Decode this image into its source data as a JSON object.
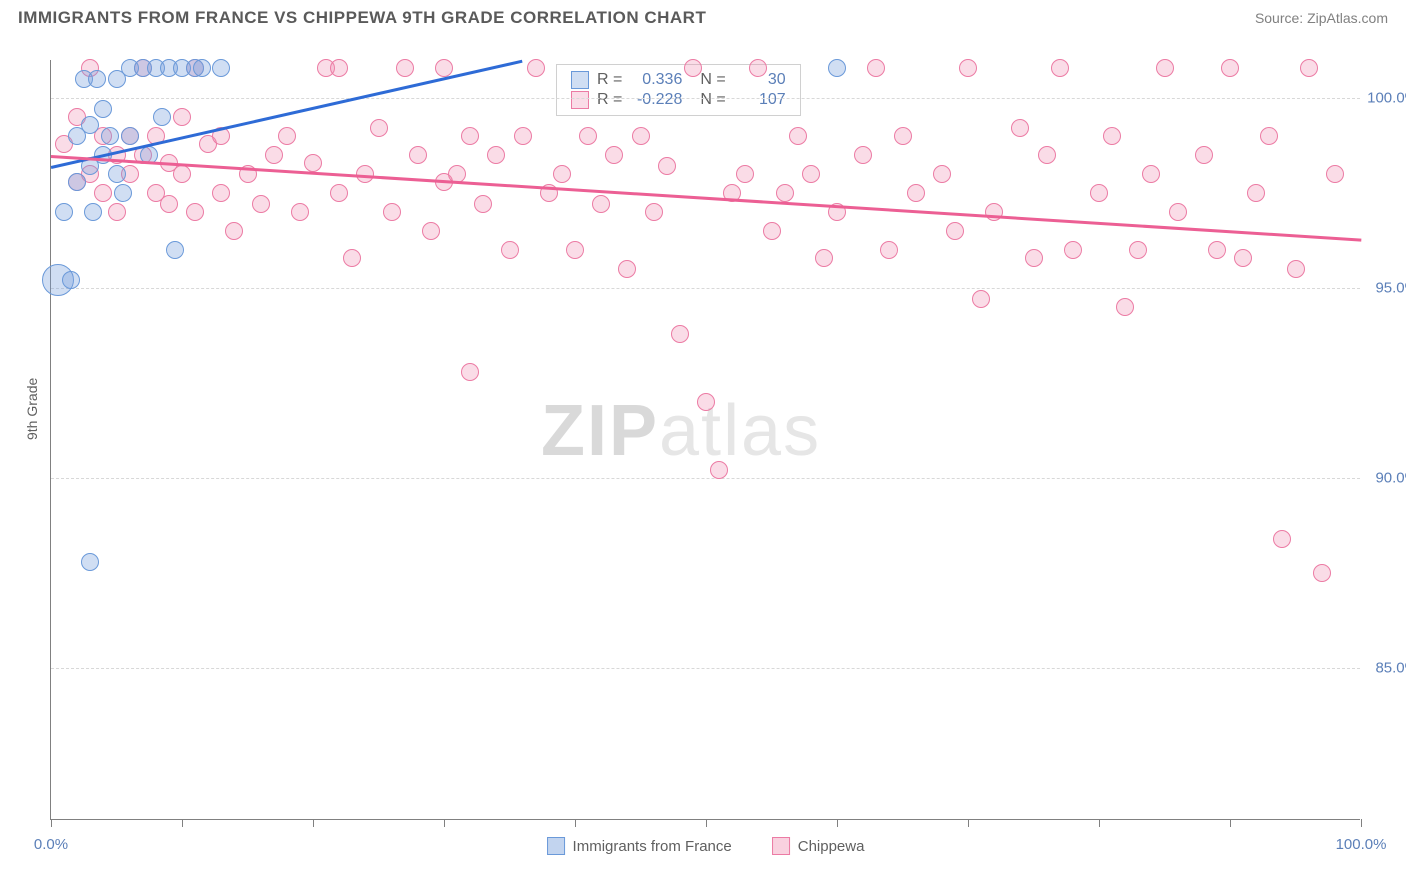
{
  "header": {
    "title": "IMMIGRANTS FROM FRANCE VS CHIPPEWA 9TH GRADE CORRELATION CHART",
    "source": "Source: ZipAtlas.com"
  },
  "chart": {
    "type": "scatter",
    "y_axis_title": "9th Grade",
    "xlim": [
      0,
      100
    ],
    "ylim": [
      81,
      101
    ],
    "y_ticks": [
      85.0,
      90.0,
      95.0,
      100.0
    ],
    "y_tick_labels": [
      "85.0%",
      "90.0%",
      "95.0%",
      "100.0%"
    ],
    "x_ticks": [
      0,
      10,
      20,
      30,
      40,
      50,
      60,
      70,
      80,
      90,
      100
    ],
    "x_end_labels": [
      "0.0%",
      "100.0%"
    ],
    "grid_color": "#d8d8d8",
    "axis_color": "#808080",
    "label_color": "#5b7fb8",
    "background_color": "#ffffff",
    "watermark": "ZIPatlas",
    "series": [
      {
        "name": "Immigrants from France",
        "short": "france",
        "color_fill": "rgba(120,160,220,0.35)",
        "color_stroke": "#6a99d9",
        "marker_radius": 9,
        "r_value": "0.336",
        "n_value": "30",
        "trend": {
          "x1": 0,
          "y1": 98.2,
          "x2": 36,
          "y2": 101.0,
          "color": "#2e6bd6"
        },
        "data": [
          {
            "x": 0.5,
            "y": 95.2,
            "r": 16
          },
          {
            "x": 1,
            "y": 97.0
          },
          {
            "x": 1.5,
            "y": 95.2
          },
          {
            "x": 2,
            "y": 99.0
          },
          {
            "x": 2,
            "y": 97.8
          },
          {
            "x": 2.5,
            "y": 100.5
          },
          {
            "x": 3,
            "y": 98.2
          },
          {
            "x": 3,
            "y": 99.3
          },
          {
            "x": 3.2,
            "y": 97.0
          },
          {
            "x": 3.5,
            "y": 100.5
          },
          {
            "x": 4,
            "y": 99.7
          },
          {
            "x": 4,
            "y": 98.5
          },
          {
            "x": 4.5,
            "y": 99.0
          },
          {
            "x": 5,
            "y": 100.5
          },
          {
            "x": 5,
            "y": 98.0
          },
          {
            "x": 5.5,
            "y": 97.5
          },
          {
            "x": 6,
            "y": 100.8
          },
          {
            "x": 6,
            "y": 99.0
          },
          {
            "x": 7,
            "y": 100.8
          },
          {
            "x": 7.5,
            "y": 98.5
          },
          {
            "x": 8,
            "y": 100.8
          },
          {
            "x": 8.5,
            "y": 99.5
          },
          {
            "x": 9,
            "y": 100.8
          },
          {
            "x": 9.5,
            "y": 96.0
          },
          {
            "x": 10,
            "y": 100.8
          },
          {
            "x": 11,
            "y": 100.8
          },
          {
            "x": 11.5,
            "y": 100.8
          },
          {
            "x": 13,
            "y": 100.8
          },
          {
            "x": 60,
            "y": 100.8
          },
          {
            "x": 3,
            "y": 87.8
          }
        ]
      },
      {
        "name": "Chippewa",
        "short": "chippewa",
        "color_fill": "rgba(240,140,175,0.30)",
        "color_stroke": "#ec7ba4",
        "marker_radius": 9,
        "r_value": "-0.228",
        "n_value": "107",
        "trend": {
          "x1": 0,
          "y1": 98.5,
          "x2": 100,
          "y2": 96.3,
          "color": "#ec5f94"
        },
        "data": [
          {
            "x": 1,
            "y": 98.8
          },
          {
            "x": 2,
            "y": 97.8
          },
          {
            "x": 2,
            "y": 99.5
          },
          {
            "x": 3,
            "y": 98.0
          },
          {
            "x": 3,
            "y": 100.8
          },
          {
            "x": 4,
            "y": 97.5
          },
          {
            "x": 4,
            "y": 99.0
          },
          {
            "x": 5,
            "y": 98.5
          },
          {
            "x": 5,
            "y": 97.0
          },
          {
            "x": 6,
            "y": 99.0
          },
          {
            "x": 6,
            "y": 98.0
          },
          {
            "x": 7,
            "y": 100.8
          },
          {
            "x": 7,
            "y": 98.5
          },
          {
            "x": 8,
            "y": 97.5
          },
          {
            "x": 8,
            "y": 99.0
          },
          {
            "x": 9,
            "y": 98.3
          },
          {
            "x": 9,
            "y": 97.2
          },
          {
            "x": 10,
            "y": 99.5
          },
          {
            "x": 10,
            "y": 98.0
          },
          {
            "x": 11,
            "y": 100.8
          },
          {
            "x": 11,
            "y": 97.0
          },
          {
            "x": 12,
            "y": 98.8
          },
          {
            "x": 13,
            "y": 97.5
          },
          {
            "x": 13,
            "y": 99.0
          },
          {
            "x": 14,
            "y": 96.5
          },
          {
            "x": 15,
            "y": 98.0
          },
          {
            "x": 16,
            "y": 97.2
          },
          {
            "x": 17,
            "y": 98.5
          },
          {
            "x": 18,
            "y": 99.0
          },
          {
            "x": 19,
            "y": 97.0
          },
          {
            "x": 20,
            "y": 98.3
          },
          {
            "x": 21,
            "y": 100.8
          },
          {
            "x": 22,
            "y": 97.5
          },
          {
            "x": 22,
            "y": 100.8
          },
          {
            "x": 23,
            "y": 95.8
          },
          {
            "x": 24,
            "y": 98.0
          },
          {
            "x": 25,
            "y": 99.2
          },
          {
            "x": 26,
            "y": 97.0
          },
          {
            "x": 27,
            "y": 100.8
          },
          {
            "x": 28,
            "y": 98.5
          },
          {
            "x": 29,
            "y": 96.5
          },
          {
            "x": 30,
            "y": 97.8
          },
          {
            "x": 30,
            "y": 100.8
          },
          {
            "x": 31,
            "y": 98.0
          },
          {
            "x": 32,
            "y": 99.0
          },
          {
            "x": 32,
            "y": 92.8
          },
          {
            "x": 33,
            "y": 97.2
          },
          {
            "x": 34,
            "y": 98.5
          },
          {
            "x": 35,
            "y": 96.0
          },
          {
            "x": 36,
            "y": 99.0
          },
          {
            "x": 37,
            "y": 100.8
          },
          {
            "x": 38,
            "y": 97.5
          },
          {
            "x": 39,
            "y": 98.0
          },
          {
            "x": 40,
            "y": 96.0
          },
          {
            "x": 41,
            "y": 99.0
          },
          {
            "x": 42,
            "y": 97.2
          },
          {
            "x": 43,
            "y": 98.5
          },
          {
            "x": 44,
            "y": 95.5
          },
          {
            "x": 45,
            "y": 99.0
          },
          {
            "x": 46,
            "y": 97.0
          },
          {
            "x": 47,
            "y": 98.2
          },
          {
            "x": 48,
            "y": 93.8
          },
          {
            "x": 49,
            "y": 100.8
          },
          {
            "x": 50,
            "y": 92.0
          },
          {
            "x": 51,
            "y": 90.2
          },
          {
            "x": 52,
            "y": 97.5
          },
          {
            "x": 53,
            "y": 98.0
          },
          {
            "x": 54,
            "y": 100.8
          },
          {
            "x": 55,
            "y": 96.5
          },
          {
            "x": 56,
            "y": 97.5
          },
          {
            "x": 57,
            "y": 99.0
          },
          {
            "x": 58,
            "y": 98.0
          },
          {
            "x": 59,
            "y": 95.8
          },
          {
            "x": 60,
            "y": 97.0
          },
          {
            "x": 62,
            "y": 98.5
          },
          {
            "x": 63,
            "y": 100.8
          },
          {
            "x": 64,
            "y": 96.0
          },
          {
            "x": 65,
            "y": 99.0
          },
          {
            "x": 66,
            "y": 97.5
          },
          {
            "x": 68,
            "y": 98.0
          },
          {
            "x": 69,
            "y": 96.5
          },
          {
            "x": 70,
            "y": 100.8
          },
          {
            "x": 71,
            "y": 94.7
          },
          {
            "x": 72,
            "y": 97.0
          },
          {
            "x": 74,
            "y": 99.2
          },
          {
            "x": 75,
            "y": 95.8
          },
          {
            "x": 76,
            "y": 98.5
          },
          {
            "x": 77,
            "y": 100.8
          },
          {
            "x": 78,
            "y": 96.0
          },
          {
            "x": 80,
            "y": 97.5
          },
          {
            "x": 81,
            "y": 99.0
          },
          {
            "x": 82,
            "y": 94.5
          },
          {
            "x": 83,
            "y": 96.0
          },
          {
            "x": 84,
            "y": 98.0
          },
          {
            "x": 85,
            "y": 100.8
          },
          {
            "x": 86,
            "y": 97.0
          },
          {
            "x": 88,
            "y": 98.5
          },
          {
            "x": 89,
            "y": 96.0
          },
          {
            "x": 90,
            "y": 100.8
          },
          {
            "x": 91,
            "y": 95.8
          },
          {
            "x": 92,
            "y": 97.5
          },
          {
            "x": 93,
            "y": 99.0
          },
          {
            "x": 94,
            "y": 88.4
          },
          {
            "x": 95,
            "y": 95.5
          },
          {
            "x": 96,
            "y": 100.8
          },
          {
            "x": 97,
            "y": 87.5
          },
          {
            "x": 98,
            "y": 98.0
          }
        ]
      }
    ],
    "legend": {
      "items": [
        {
          "label": "Immigrants from France",
          "fill": "rgba(120,160,220,0.45)",
          "stroke": "#6a99d9"
        },
        {
          "label": "Chippewa",
          "fill": "rgba(240,140,175,0.40)",
          "stroke": "#ec7ba4"
        }
      ]
    }
  }
}
